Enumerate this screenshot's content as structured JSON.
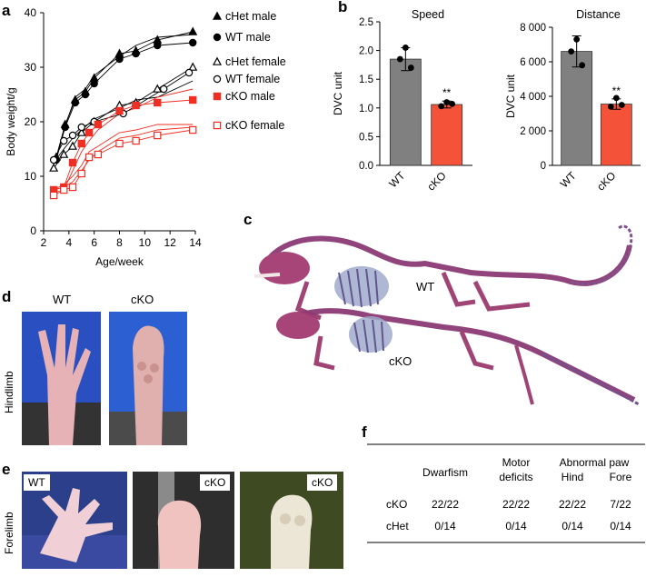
{
  "panel_a": {
    "letter": "a",
    "chart_data": {
      "type": "line",
      "xlabel": "Age/week",
      "ylabel": "Body weight/g",
      "xlim": [
        2,
        14
      ],
      "ylim": [
        0,
        40
      ],
      "xticks": [
        2,
        4,
        6,
        8,
        10,
        12,
        14
      ],
      "yticks": [
        0,
        10,
        20,
        30,
        40
      ],
      "series": [
        {
          "name": "cHet male",
          "marker": "triangle-filled",
          "color": "#000000",
          "x": [
            3,
            3.7,
            4.5,
            5.3,
            6,
            8,
            9.3,
            11,
            13.8
          ],
          "y": [
            13.5,
            19.5,
            24,
            25.5,
            28,
            32.5,
            33,
            35,
            36.5
          ]
        },
        {
          "name": "WT male",
          "marker": "circle-filled",
          "color": "#000000",
          "x": [
            3,
            3.7,
            4.5,
            5.3,
            6,
            8,
            9.3,
            11,
            13.8
          ],
          "y": [
            13,
            19,
            23.5,
            25,
            27,
            31.5,
            32.5,
            34,
            34.5
          ]
        },
        {
          "name": "cHet female",
          "marker": "triangle-open",
          "color": "#000000",
          "x": [
            2.8,
            3.6,
            4.3,
            5,
            6,
            8,
            9.3,
            11,
            13.8
          ],
          "y": [
            11.5,
            14,
            15.5,
            18,
            20,
            23,
            23.5,
            26,
            30
          ]
        },
        {
          "name": "WT female",
          "marker": "circle-open",
          "color": "#000000",
          "x": [
            2.8,
            3.6,
            4.3,
            5,
            6,
            8.3,
            11.5,
            13.5
          ],
          "y": [
            13,
            16.5,
            17.5,
            19,
            20,
            21.5,
            26,
            29
          ]
        },
        {
          "name": "cKO male",
          "marker": "square-filled",
          "color": "#ef2f24",
          "x": [
            2.8,
            3.6,
            4.3,
            5,
            5.6,
            6.3,
            8,
            9.3,
            11,
            13.8
          ],
          "y": [
            7.5,
            8,
            12.5,
            16,
            18,
            19.5,
            22,
            23,
            23.5,
            24
          ]
        },
        {
          "name": "cKO female",
          "marker": "square-open",
          "color": "#ef2f24",
          "x": [
            2.8,
            3.6,
            4.3,
            5,
            5.6,
            6.3,
            8,
            9.3,
            11,
            13.8
          ],
          "y": [
            6.5,
            7.5,
            8,
            10.5,
            13.5,
            14,
            16,
            16.5,
            17.5,
            18.5
          ]
        }
      ],
      "extra_lines": [
        {
          "color": "#000000",
          "x": [
            3,
            3.7,
            4.5,
            5.3,
            6,
            8,
            9.3,
            11,
            13.8
          ],
          "y": [
            13.2,
            19.2,
            24.5,
            26,
            28.5,
            32,
            34,
            35.5,
            36
          ]
        },
        {
          "color": "#000000",
          "x": [
            2.8,
            3.6,
            4.3,
            5,
            6,
            8,
            9.3,
            11,
            13.8
          ],
          "y": [
            12.5,
            15,
            17,
            18.5,
            20.5,
            22.5,
            24,
            24.5,
            27.5
          ]
        },
        {
          "color": "#ef2f24",
          "x": [
            2.8,
            3.6,
            4.3,
            5,
            5.6,
            6.3,
            8,
            9.3,
            11,
            13.8
          ],
          "y": [
            7,
            7.5,
            11,
            14.5,
            16.5,
            18.5,
            21.5,
            22.5,
            24.5,
            26
          ]
        },
        {
          "color": "#ef2f24",
          "x": [
            2.8,
            3.6,
            4.3,
            5,
            5.6,
            6.3,
            8,
            9.3,
            11,
            13.8
          ],
          "y": [
            7.5,
            8.5,
            10,
            12,
            14.5,
            15.5,
            18,
            18.5,
            19.5,
            19.5
          ]
        },
        {
          "color": "#ef2f24",
          "x": [
            2.8,
            3.6,
            4.3,
            5,
            5.6,
            6.3,
            8,
            9.3,
            11,
            13.8
          ],
          "y": [
            7.5,
            8,
            9,
            11,
            13,
            14.5,
            17,
            17.5,
            18.5,
            19
          ]
        }
      ]
    }
  },
  "panel_b": {
    "letter": "b",
    "chart_data": [
      {
        "type": "bar",
        "title": "Speed",
        "ylabel": "DVC unit",
        "categories": [
          "WT",
          "cKO"
        ],
        "values": [
          1.85,
          1.06
        ],
        "errors": [
          0.2,
          0.06
        ],
        "points": [
          [
            2.05,
            1.85,
            1.7
          ],
          [
            1.1,
            1.03,
            1.07
          ]
        ],
        "ylim": [
          0,
          2.5
        ],
        "yticks": [
          "0.0",
          "0.5",
          "1.0",
          "1.5",
          "2.0",
          "2.5"
        ],
        "significance": "**",
        "colors": [
          "#808080",
          "#f4533a"
        ]
      },
      {
        "type": "bar",
        "title": "Distance",
        "ylabel": "DVC unit",
        "categories": [
          "WT",
          "cKO"
        ],
        "values": [
          6600,
          3550
        ],
        "errors": [
          900,
          300
        ],
        "points": [
          [
            7300,
            6600,
            5800
          ],
          [
            3900,
            3400,
            3500
          ]
        ],
        "ylim": [
          0,
          8000
        ],
        "yticks": [
          "0",
          "2 000",
          "4 000",
          "6 000",
          "8 000"
        ],
        "significance": "**",
        "colors": [
          "#808080",
          "#f4533a"
        ]
      }
    ]
  },
  "panel_c": {
    "letter": "c",
    "label_wt": "WT",
    "label_cko": "cKO"
  },
  "panel_d": {
    "letter": "d",
    "side_label": "Hindlimb",
    "label_wt": "WT",
    "label_cko": "cKO"
  },
  "panel_e": {
    "letter": "e",
    "side_label": "Forelimb",
    "labels": [
      "WT",
      "cKO",
      "cKO"
    ]
  },
  "panel_f": {
    "letter": "f",
    "header_dwarfism": "Dwarfism",
    "header_motor_line1": "Motor",
    "header_motor_line2": "deficits",
    "header_paw": "Abnormal paw",
    "header_hind": "Hind",
    "header_fore": "Fore",
    "rows": [
      {
        "group": "cKO",
        "dwarfism": "22/22",
        "motor": "22/22",
        "hind": "22/22",
        "fore": "7/22"
      },
      {
        "group": "cHet",
        "dwarfism": "0/14",
        "motor": "0/14",
        "hind": "0/14",
        "fore": "0/14"
      }
    ]
  }
}
